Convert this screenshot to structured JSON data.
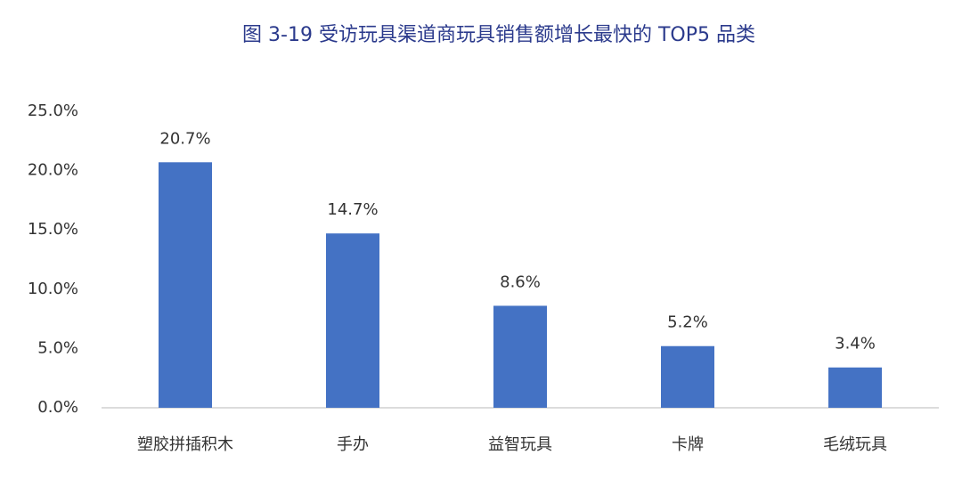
{
  "chart_data": {
    "type": "bar",
    "title": "图 3-19 受访玩具渠道商玩具销售额增长最快的 TOP5 品类",
    "categories": [
      "塑胶拼插积木",
      "手办",
      "益智玩具",
      "卡牌",
      "毛绒玩具"
    ],
    "values": [
      20.7,
      14.7,
      8.6,
      5.2,
      3.4
    ],
    "value_labels": [
      "20.7%",
      "14.7%",
      "8.6%",
      "5.2%",
      "3.4%"
    ],
    "color": "#4472c4",
    "ylim": [
      0,
      25
    ],
    "yticks": [
      {
        "value": 0,
        "label": "0.0%"
      },
      {
        "value": 5,
        "label": "5.0%"
      },
      {
        "value": 10,
        "label": "10.0%"
      },
      {
        "value": 15,
        "label": "15.0%"
      },
      {
        "value": 20,
        "label": "20.0%"
      },
      {
        "value": 25,
        "label": "25.0%"
      }
    ],
    "grid": false
  }
}
